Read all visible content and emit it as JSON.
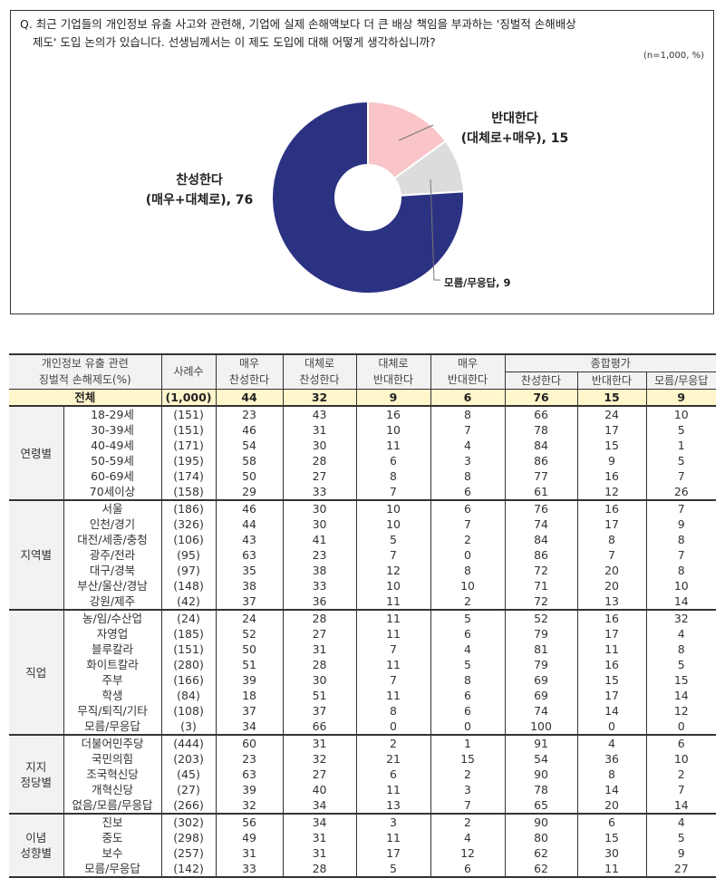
{
  "question": {
    "line1": "Q. 최근 기업들의 개인정보 유출 사고와 관련해, 기업에 실제 손해액보다 더 큰 배상 책임을 부과하는 '징벌적 손해배상",
    "line2": "제도' 도입 논의가 있습니다. 선생님께서는 이 제도 도입에 대해 어떻게 생각하십니까?",
    "sample_note": "(n=1,000, %)"
  },
  "donut": {
    "agree_label_1": "찬성한다",
    "agree_label_2": "(매우+대체로), 76",
    "oppose_label_1": "반대한다",
    "oppose_label_2": "(대체로+매우), 15",
    "dk_label": "모름/무응답, 9"
  },
  "chart_data": [
    {
      "type": "pie",
      "title": "징벌적 손해배상 제도 도입에 대한 의견",
      "note": "(n=1,000, %)",
      "donut": true,
      "categories": [
        "찬성한다 (매우+대체로)",
        "반대한다 (대체로+매우)",
        "모름/무응답"
      ],
      "values": [
        76,
        15,
        9
      ],
      "colors": [
        "#2b3282",
        "#f9c5c9",
        "#dcdcdc"
      ]
    },
    {
      "type": "table",
      "title": "개인정보 유출 관련 징벌적 손해제도(%)",
      "columns": [
        "사례수",
        "매우 찬성한다",
        "대체로 찬성한다",
        "대체로 반대한다",
        "매우 반대한다",
        "종합평가 찬성한다",
        "종합평가 반대한다",
        "종합평가 모름/무응답"
      ],
      "rows": [
        {
          "group": "전체",
          "label": "전체",
          "values": [
            "(1,000)",
            44,
            32,
            9,
            6,
            76,
            15,
            9
          ]
        },
        {
          "group": "연령별",
          "label": "18-29세",
          "values": [
            "(151)",
            23,
            43,
            16,
            8,
            66,
            24,
            10
          ]
        },
        {
          "group": "연령별",
          "label": "30-39세",
          "values": [
            "(151)",
            46,
            31,
            10,
            7,
            78,
            17,
            5
          ]
        },
        {
          "group": "연령별",
          "label": "40-49세",
          "values": [
            "(171)",
            54,
            30,
            11,
            4,
            84,
            15,
            1
          ]
        },
        {
          "group": "연령별",
          "label": "50-59세",
          "values": [
            "(195)",
            58,
            28,
            6,
            3,
            86,
            9,
            5
          ]
        },
        {
          "group": "연령별",
          "label": "60-69세",
          "values": [
            "(174)",
            50,
            27,
            8,
            8,
            77,
            16,
            7
          ]
        },
        {
          "group": "연령별",
          "label": "70세이상",
          "values": [
            "(158)",
            29,
            33,
            7,
            6,
            61,
            12,
            26
          ]
        },
        {
          "group": "지역별",
          "label": "서울",
          "values": [
            "(186)",
            46,
            30,
            10,
            6,
            76,
            16,
            7
          ]
        },
        {
          "group": "지역별",
          "label": "인천/경기",
          "values": [
            "(326)",
            44,
            30,
            10,
            7,
            74,
            17,
            9
          ]
        },
        {
          "group": "지역별",
          "label": "대전/세종/충청",
          "values": [
            "(106)",
            43,
            41,
            5,
            2,
            84,
            8,
            8
          ]
        },
        {
          "group": "지역별",
          "label": "광주/전라",
          "values": [
            "(95)",
            63,
            23,
            7,
            0,
            86,
            7,
            7
          ]
        },
        {
          "group": "지역별",
          "label": "대구/경북",
          "values": [
            "(97)",
            35,
            38,
            12,
            8,
            72,
            20,
            8
          ]
        },
        {
          "group": "지역별",
          "label": "부산/울산/경남",
          "values": [
            "(148)",
            38,
            33,
            10,
            10,
            71,
            20,
            10
          ]
        },
        {
          "group": "지역별",
          "label": "강원/제주",
          "values": [
            "(42)",
            37,
            36,
            11,
            2,
            72,
            13,
            14
          ]
        },
        {
          "group": "직업",
          "label": "농/임/수산업",
          "values": [
            "(24)",
            24,
            28,
            11,
            5,
            52,
            16,
            32
          ]
        },
        {
          "group": "직업",
          "label": "자영업",
          "values": [
            "(185)",
            52,
            27,
            11,
            6,
            79,
            17,
            4
          ]
        },
        {
          "group": "직업",
          "label": "블루칼라",
          "values": [
            "(151)",
            50,
            31,
            7,
            4,
            81,
            11,
            8
          ]
        },
        {
          "group": "직업",
          "label": "화이트칼라",
          "values": [
            "(280)",
            51,
            28,
            11,
            5,
            79,
            16,
            5
          ]
        },
        {
          "group": "직업",
          "label": "주부",
          "values": [
            "(166)",
            39,
            30,
            7,
            8,
            69,
            15,
            15
          ]
        },
        {
          "group": "직업",
          "label": "학생",
          "values": [
            "(84)",
            18,
            51,
            11,
            6,
            69,
            17,
            14
          ]
        },
        {
          "group": "직업",
          "label": "무직/퇴직/기타",
          "values": [
            "(108)",
            37,
            37,
            8,
            6,
            74,
            14,
            12
          ]
        },
        {
          "group": "직업",
          "label": "모름/무응답",
          "values": [
            "(3)",
            34,
            66,
            0,
            0,
            100,
            0,
            0
          ]
        },
        {
          "group": "지지 정당별",
          "label": "더불어민주당",
          "values": [
            "(444)",
            60,
            31,
            2,
            1,
            91,
            4,
            6
          ]
        },
        {
          "group": "지지 정당별",
          "label": "국민의힘",
          "values": [
            "(203)",
            23,
            32,
            21,
            15,
            54,
            36,
            10
          ]
        },
        {
          "group": "지지 정당별",
          "label": "조국혁신당",
          "values": [
            "(45)",
            63,
            27,
            6,
            2,
            90,
            8,
            2
          ]
        },
        {
          "group": "지지 정당별",
          "label": "개혁신당",
          "values": [
            "(27)",
            39,
            40,
            11,
            3,
            78,
            14,
            7
          ]
        },
        {
          "group": "지지 정당별",
          "label": "없음/모름/무응답",
          "values": [
            "(266)",
            32,
            34,
            13,
            7,
            65,
            20,
            14
          ]
        },
        {
          "group": "이념 성향별",
          "label": "진보",
          "values": [
            "(302)",
            56,
            34,
            3,
            2,
            90,
            6,
            4
          ]
        },
        {
          "group": "이념 성향별",
          "label": "중도",
          "values": [
            "(298)",
            49,
            31,
            11,
            4,
            80,
            15,
            5
          ]
        },
        {
          "group": "이념 성향별",
          "label": "보수",
          "values": [
            "(257)",
            31,
            31,
            17,
            12,
            62,
            30,
            9
          ]
        },
        {
          "group": "이념 성향별",
          "label": "모름/무응답",
          "values": [
            "(142)",
            33,
            28,
            5,
            6,
            62,
            11,
            27
          ]
        }
      ]
    }
  ],
  "table": {
    "header": {
      "title_1": "개인정보 유출 관련",
      "title_2": "징벌적 손해제도(%)",
      "n": "사례수",
      "c1_1": "매우",
      "c1_2": "찬성한다",
      "c2_1": "대체로",
      "c2_2": "찬성한다",
      "c3_1": "대체로",
      "c3_2": "반대한다",
      "c4_1": "매우",
      "c4_2": "반대한다",
      "summary": "종합평가",
      "s1": "찬성한다",
      "s2": "반대한다",
      "s3": "모름/무응답"
    },
    "total": {
      "label": "전체",
      "v": [
        "(1,000)",
        "44",
        "32",
        "9",
        "6",
        "76",
        "15",
        "9"
      ]
    },
    "groups": [
      {
        "name_1": "연령별",
        "name_2": "",
        "rows": [
          {
            "label": "18-29세",
            "v": [
              "(151)",
              "23",
              "43",
              "16",
              "8",
              "66",
              "24",
              "10"
            ]
          },
          {
            "label": "30-39세",
            "v": [
              "(151)",
              "46",
              "31",
              "10",
              "7",
              "78",
              "17",
              "5"
            ]
          },
          {
            "label": "40-49세",
            "v": [
              "(171)",
              "54",
              "30",
              "11",
              "4",
              "84",
              "15",
              "1"
            ]
          },
          {
            "label": "50-59세",
            "v": [
              "(195)",
              "58",
              "28",
              "6",
              "3",
              "86",
              "9",
              "5"
            ]
          },
          {
            "label": "60-69세",
            "v": [
              "(174)",
              "50",
              "27",
              "8",
              "8",
              "77",
              "16",
              "7"
            ]
          },
          {
            "label": "70세이상",
            "v": [
              "(158)",
              "29",
              "33",
              "7",
              "6",
              "61",
              "12",
              "26"
            ]
          }
        ]
      },
      {
        "name_1": "지역별",
        "name_2": "",
        "rows": [
          {
            "label": "서울",
            "v": [
              "(186)",
              "46",
              "30",
              "10",
              "6",
              "76",
              "16",
              "7"
            ]
          },
          {
            "label": "인천/경기",
            "v": [
              "(326)",
              "44",
              "30",
              "10",
              "7",
              "74",
              "17",
              "9"
            ]
          },
          {
            "label": "대전/세종/충청",
            "v": [
              "(106)",
              "43",
              "41",
              "5",
              "2",
              "84",
              "8",
              "8"
            ]
          },
          {
            "label": "광주/전라",
            "v": [
              "(95)",
              "63",
              "23",
              "7",
              "0",
              "86",
              "7",
              "7"
            ]
          },
          {
            "label": "대구/경북",
            "v": [
              "(97)",
              "35",
              "38",
              "12",
              "8",
              "72",
              "20",
              "8"
            ]
          },
          {
            "label": "부산/울산/경남",
            "v": [
              "(148)",
              "38",
              "33",
              "10",
              "10",
              "71",
              "20",
              "10"
            ]
          },
          {
            "label": "강원/제주",
            "v": [
              "(42)",
              "37",
              "36",
              "11",
              "2",
              "72",
              "13",
              "14"
            ]
          }
        ]
      },
      {
        "name_1": "직업",
        "name_2": "",
        "rows": [
          {
            "label": "농/임/수산업",
            "v": [
              "(24)",
              "24",
              "28",
              "11",
              "5",
              "52",
              "16",
              "32"
            ]
          },
          {
            "label": "자영업",
            "v": [
              "(185)",
              "52",
              "27",
              "11",
              "6",
              "79",
              "17",
              "4"
            ]
          },
          {
            "label": "블루칼라",
            "v": [
              "(151)",
              "50",
              "31",
              "7",
              "4",
              "81",
              "11",
              "8"
            ]
          },
          {
            "label": "화이트칼라",
            "v": [
              "(280)",
              "51",
              "28",
              "11",
              "5",
              "79",
              "16",
              "5"
            ]
          },
          {
            "label": "주부",
            "v": [
              "(166)",
              "39",
              "30",
              "7",
              "8",
              "69",
              "15",
              "15"
            ]
          },
          {
            "label": "학생",
            "v": [
              "(84)",
              "18",
              "51",
              "11",
              "6",
              "69",
              "17",
              "14"
            ]
          },
          {
            "label": "무직/퇴직/기타",
            "v": [
              "(108)",
              "37",
              "37",
              "8",
              "6",
              "74",
              "14",
              "12"
            ]
          },
          {
            "label": "모름/무응답",
            "v": [
              "(3)",
              "34",
              "66",
              "0",
              "0",
              "100",
              "0",
              "0"
            ]
          }
        ]
      },
      {
        "name_1": "지지",
        "name_2": "정당별",
        "rows": [
          {
            "label": "더불어민주당",
            "v": [
              "(444)",
              "60",
              "31",
              "2",
              "1",
              "91",
              "4",
              "6"
            ]
          },
          {
            "label": "국민의힘",
            "v": [
              "(203)",
              "23",
              "32",
              "21",
              "15",
              "54",
              "36",
              "10"
            ]
          },
          {
            "label": "조국혁신당",
            "v": [
              "(45)",
              "63",
              "27",
              "6",
              "2",
              "90",
              "8",
              "2"
            ]
          },
          {
            "label": "개혁신당",
            "v": [
              "(27)",
              "39",
              "40",
              "11",
              "3",
              "78",
              "14",
              "7"
            ]
          },
          {
            "label": "없음/모름/무응답",
            "v": [
              "(266)",
              "32",
              "34",
              "13",
              "7",
              "65",
              "20",
              "14"
            ]
          }
        ]
      },
      {
        "name_1": "이념",
        "name_2": "성향별",
        "rows": [
          {
            "label": "진보",
            "v": [
              "(302)",
              "56",
              "34",
              "3",
              "2",
              "90",
              "6",
              "4"
            ]
          },
          {
            "label": "중도",
            "v": [
              "(298)",
              "49",
              "31",
              "11",
              "4",
              "80",
              "15",
              "5"
            ]
          },
          {
            "label": "보수",
            "v": [
              "(257)",
              "31",
              "31",
              "17",
              "12",
              "62",
              "30",
              "9"
            ]
          },
          {
            "label": "모름/무응답",
            "v": [
              "(142)",
              "33",
              "28",
              "5",
              "6",
              "62",
              "11",
              "27"
            ]
          }
        ]
      }
    ]
  }
}
